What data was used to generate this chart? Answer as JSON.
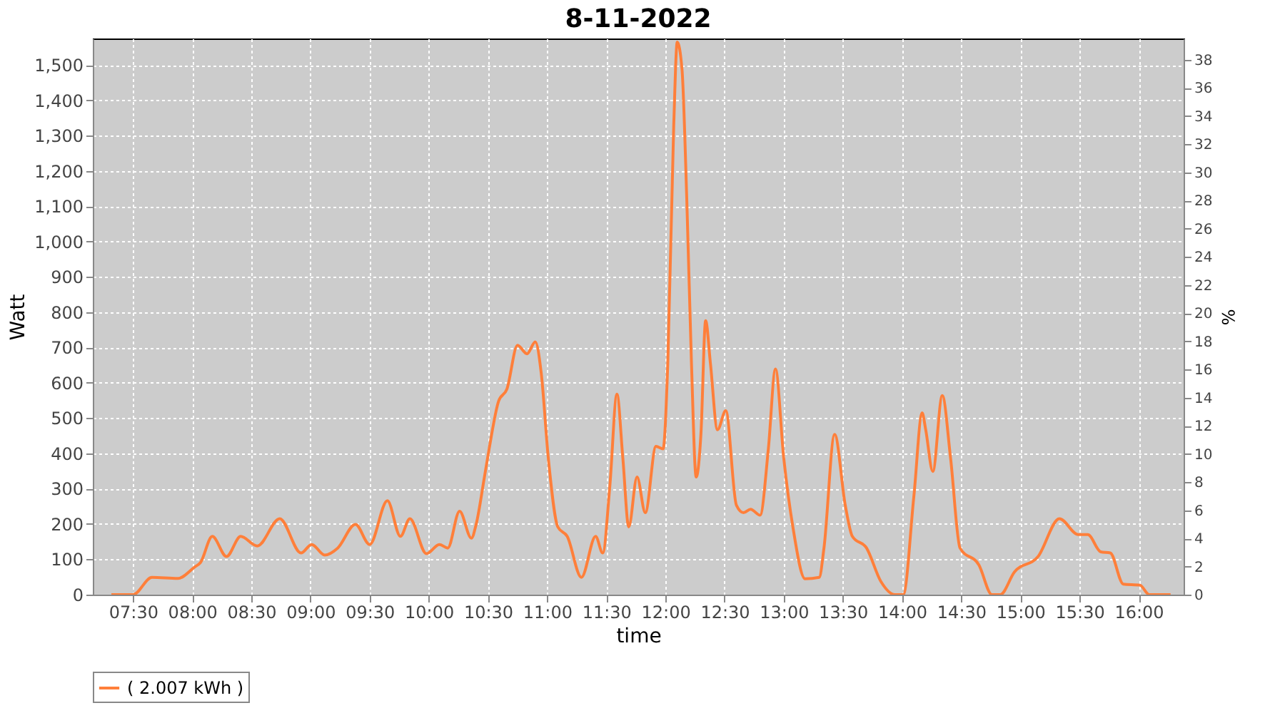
{
  "chart_data": {
    "type": "line",
    "title": "8-11-2022",
    "xlabel": "time",
    "ylabel": "Watt",
    "y2label": "%",
    "xlim": [
      7.16,
      16.38
    ],
    "xticks": [
      {
        "value": 7.5,
        "label": "07:30"
      },
      {
        "value": 8,
        "label": "08:00"
      },
      {
        "value": 8.5,
        "label": "08:30"
      },
      {
        "value": 9,
        "label": "09:00"
      },
      {
        "value": 9.5,
        "label": "09:30"
      },
      {
        "value": 10,
        "label": "10:00"
      },
      {
        "value": 10.5,
        "label": "10:30"
      },
      {
        "value": 11,
        "label": "11:00"
      },
      {
        "value": 11.5,
        "label": "11:30"
      },
      {
        "value": 12,
        "label": "12:00"
      },
      {
        "value": 12.5,
        "label": "12:30"
      },
      {
        "value": 13,
        "label": "13:00"
      },
      {
        "value": 13.5,
        "label": "13:30"
      },
      {
        "value": 14,
        "label": "14:00"
      },
      {
        "value": 14.5,
        "label": "14:30"
      },
      {
        "value": 15,
        "label": "15:00"
      },
      {
        "value": 15.5,
        "label": "15:30"
      },
      {
        "value": 16,
        "label": "16:00"
      }
    ],
    "ylim": [
      0,
      1575
    ],
    "yticks": [
      0,
      100,
      200,
      300,
      400,
      500,
      600,
      700,
      800,
      900,
      {
        "value": 1000,
        "label": "1,000"
      },
      {
        "value": 1100,
        "label": "1,100"
      },
      {
        "value": 1200,
        "label": "1,200"
      },
      {
        "value": 1300,
        "label": "1,300"
      },
      {
        "value": 1400,
        "label": "1,400"
      },
      {
        "value": 1500,
        "label": "1,500"
      }
    ],
    "y2lim": [
      0,
      39.5
    ],
    "y2ticks": [
      0,
      2,
      4,
      6,
      8,
      10,
      12,
      14,
      16,
      18,
      20,
      22,
      24,
      26,
      28,
      30,
      32,
      34,
      36,
      38
    ],
    "grid": true,
    "legend": "bottom",
    "series": [
      {
        "name": "( 2.007 kWh )",
        "color": "#ff7f3a",
        "x": [
          7.317,
          7.5,
          7.66,
          7.88,
          8.02,
          8.07,
          8.17,
          8.29,
          8.41,
          8.55,
          8.74,
          8.92,
          9.01,
          9.12,
          9.23,
          9.38,
          9.5,
          9.65,
          9.76,
          9.84,
          9.98,
          10.09,
          10.16,
          10.26,
          10.36,
          10.4,
          10.47,
          10.51,
          10.59,
          10.66,
          10.75,
          10.83,
          10.9,
          10.95,
          11.01,
          11.09,
          11.17,
          11.29,
          11.41,
          11.47,
          11.53,
          11.59,
          11.64,
          11.69,
          11.76,
          11.83,
          11.92,
          11.98,
          12.02,
          12.07,
          12.1,
          12.14,
          12.18,
          12.22,
          12.26,
          12.3,
          12.34,
          12.38,
          12.44,
          12.51,
          12.6,
          12.66,
          12.72,
          12.8,
          12.87,
          12.93,
          13.0,
          13.08,
          13.18,
          13.3,
          13.34,
          13.43,
          13.52,
          13.58,
          13.7,
          13.82,
          13.94,
          14.01,
          14.1,
          14.17,
          14.2,
          14.26,
          14.34,
          14.41,
          14.49,
          14.65,
          14.76,
          14.83,
          14.95,
          15.15,
          15.33,
          15.49,
          15.57,
          15.68,
          15.76,
          15.87,
          16.01,
          16.09,
          16.27
        ],
        "values": [
          0,
          0,
          49,
          46,
          78,
          91,
          165,
          108,
          165,
          138,
          215,
          118,
          142,
          112,
          132,
          199,
          142,
          266,
          165,
          215,
          116,
          142,
          132,
          236,
          160,
          199,
          333,
          413,
          548,
          582,
          706,
          682,
          716,
          628,
          387,
          192,
          165,
          49,
          165,
          118,
          307,
          568,
          387,
          192,
          333,
          232,
          420,
          413,
          656,
          1327,
          1565,
          1488,
          1125,
          656,
          333,
          454,
          776,
          656,
          467,
          521,
          253,
          232,
          242,
          225,
          413,
          639,
          387,
          186,
          45,
          49,
          132,
          454,
          253,
          165,
          132,
          38,
          0,
          0,
          279,
          515,
          467,
          349,
          564,
          387,
          132,
          84,
          0,
          0,
          64,
          108,
          215,
          170,
          170,
          121,
          118,
          30,
          27,
          0,
          0
        ]
      }
    ]
  }
}
